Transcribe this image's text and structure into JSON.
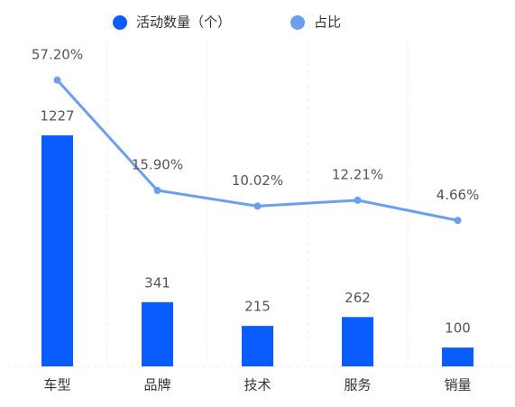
{
  "chart_data": {
    "type": "bar-line",
    "categories": [
      "车型",
      "品牌",
      "技术",
      "服务",
      "销量"
    ],
    "series": [
      {
        "name": "活动数量（个）",
        "color": "#0a5cff",
        "type": "bar",
        "values": [
          1227,
          341,
          215,
          262,
          100
        ]
      },
      {
        "name": "占比",
        "color": "#6a9ff0",
        "type": "line",
        "axis": "y2",
        "values": [
          57.2,
          15.9,
          10.02,
          12.21,
          4.66
        ],
        "value_labels": [
          "57.20%",
          "15.90%",
          "10.02%",
          "12.21%",
          "4.66%"
        ]
      }
    ],
    "ylim": [
      0,
      1730
    ],
    "y2lim": [
      -50,
      72
    ],
    "legend": "top"
  }
}
